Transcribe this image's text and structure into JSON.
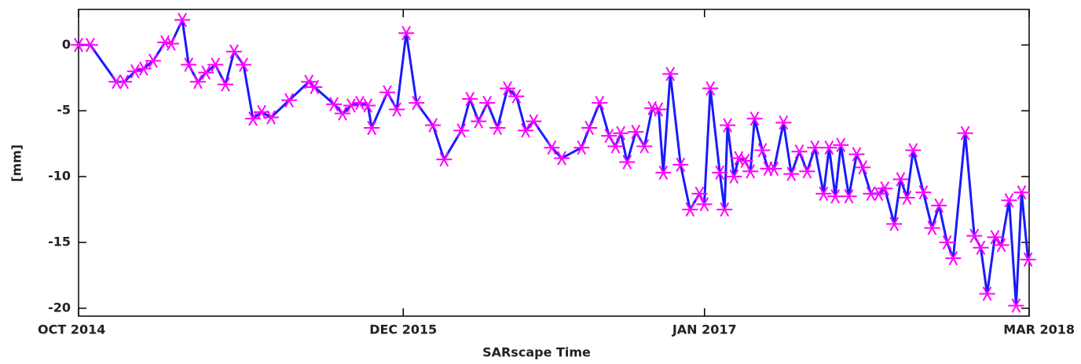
{
  "chart_data": {
    "type": "line",
    "x_label": "SARscape Time",
    "y_label": "[mm]",
    "xlim": [
      2014.75,
      2018.167
    ],
    "ylim": [
      -20.6,
      2.7
    ],
    "xticks": [
      {
        "value": 2014.75,
        "label": "OCT 2014"
      },
      {
        "value": 2015.917,
        "label": "DEC 2015"
      },
      {
        "value": 2017.0,
        "label": "JAN 2017"
      },
      {
        "value": 2018.167,
        "label": "MAR 2018"
      }
    ],
    "yticks": [
      0,
      -5,
      -10,
      -15,
      -20
    ],
    "line_color": "#1a1aff",
    "marker_color": "#ff00ff",
    "x": [
      2014.75,
      2014.792,
      2014.886,
      2014.914,
      2014.953,
      2014.984,
      2015.018,
      2015.061,
      2015.083,
      2015.123,
      2015.146,
      2015.179,
      2015.208,
      2015.242,
      2015.278,
      2015.309,
      2015.343,
      2015.377,
      2015.408,
      2015.442,
      2015.507,
      2015.578,
      2015.598,
      2015.668,
      2015.699,
      2015.73,
      2015.761,
      2015.79,
      2015.804,
      2015.86,
      2015.894,
      2015.928,
      2015.965,
      2016.024,
      2016.064,
      2016.126,
      2016.157,
      2016.188,
      2016.219,
      2016.256,
      2016.292,
      2016.324,
      2016.357,
      2016.386,
      2016.451,
      2016.487,
      2016.558,
      2016.586,
      2016.623,
      2016.657,
      2016.68,
      2016.699,
      2016.722,
      2016.753,
      2016.784,
      2016.812,
      2016.835,
      2016.852,
      2016.877,
      2016.914,
      2016.948,
      2016.982,
      2016.999,
      2017.021,
      2017.055,
      2017.072,
      2017.083,
      2017.106,
      2017.123,
      2017.146,
      2017.165,
      2017.18,
      2017.208,
      2017.228,
      2017.25,
      2017.284,
      2017.312,
      2017.341,
      2017.369,
      2017.397,
      2017.428,
      2017.448,
      2017.47,
      2017.49,
      2017.519,
      2017.547,
      2017.569,
      2017.598,
      2017.626,
      2017.648,
      2017.682,
      2017.705,
      2017.728,
      2017.75,
      2017.787,
      2017.818,
      2017.843,
      2017.872,
      2017.894,
      2017.937,
      2017.97,
      2017.993,
      2018.016,
      2018.044,
      2018.067,
      2018.095,
      2018.12,
      2018.14,
      2018.163
    ],
    "values": [
      0,
      0,
      -2.8,
      -2.8,
      -2,
      -1.8,
      -1.2,
      0.2,
      0.1,
      1.9,
      -1.5,
      -2.8,
      -2.1,
      -1.5,
      -3,
      -0.5,
      -1.5,
      -5.6,
      -5.1,
      -5.5,
      -4.2,
      -2.8,
      -3.2,
      -4.5,
      -5.2,
      -4.6,
      -4.4,
      -4.6,
      -6.3,
      -3.6,
      -4.9,
      0.9,
      -4.4,
      -6.1,
      -8.7,
      -6.5,
      -4.1,
      -5.8,
      -4.4,
      -6.3,
      -3.3,
      -3.9,
      -6.5,
      -5.8,
      -7.8,
      -8.6,
      -7.8,
      -6.3,
      -4.4,
      -6.9,
      -7.7,
      -6.7,
      -8.9,
      -6.6,
      -7.7,
      -4.8,
      -4.9,
      -9.7,
      -2.2,
      -9.1,
      -12.5,
      -11.3,
      -12.1,
      -3.3,
      -9.7,
      -12.5,
      -6.1,
      -10,
      -8.6,
      -8.8,
      -9.6,
      -5.6,
      -8,
      -9.4,
      -9.4,
      -5.9,
      -9.8,
      -8.1,
      -9.6,
      -7.8,
      -11.3,
      -7.8,
      -11.5,
      -7.6,
      -11.5,
      -8.3,
      -9.3,
      -11.3,
      -11.3,
      -10.9,
      -13.6,
      -10.2,
      -11.6,
      -8,
      -11.2,
      -13.9,
      -12.2,
      -15,
      -16.2,
      -6.7,
      -14.5,
      -15.4,
      -18.9,
      -14.6,
      -15.2,
      -11.8,
      -19.8,
      -11.2,
      -16.3
    ]
  }
}
